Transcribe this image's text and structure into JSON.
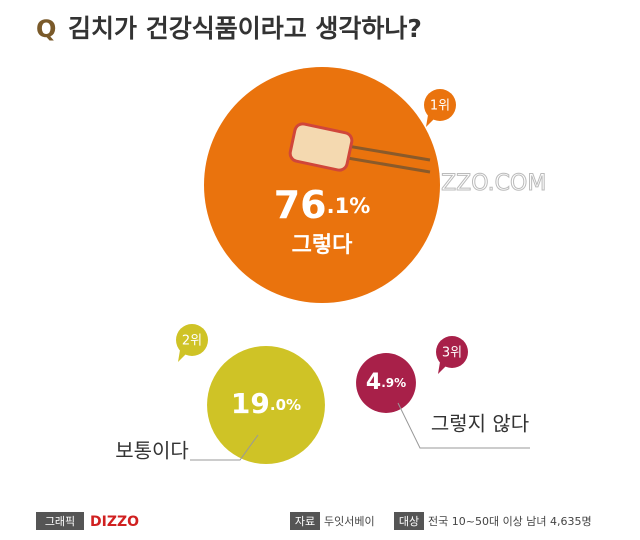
{
  "chart_data": {
    "type": "bubble",
    "title_marker": "Q",
    "title": "김치가 건강식품이라고 생각하나?",
    "categories": [
      "그렇다",
      "보통이다",
      "그렇지 않다"
    ],
    "values": [
      76.1,
      19.0,
      4.9
    ],
    "value_labels": [
      "76.1%",
      "19.0%",
      "4.9%"
    ],
    "ranks": [
      "1위",
      "2위",
      "3위"
    ],
    "colors": [
      "#ea730d",
      "#cfc326",
      "#a82049"
    ],
    "watermark": "DIZZO.COM",
    "footer": {
      "graphic_label": "그래픽",
      "brand": "DIZZO",
      "source_label": "자료",
      "source": "두잇서베이",
      "target_label": "대상",
      "target": "전국 10~50대 이상 남녀 4,635명"
    }
  }
}
